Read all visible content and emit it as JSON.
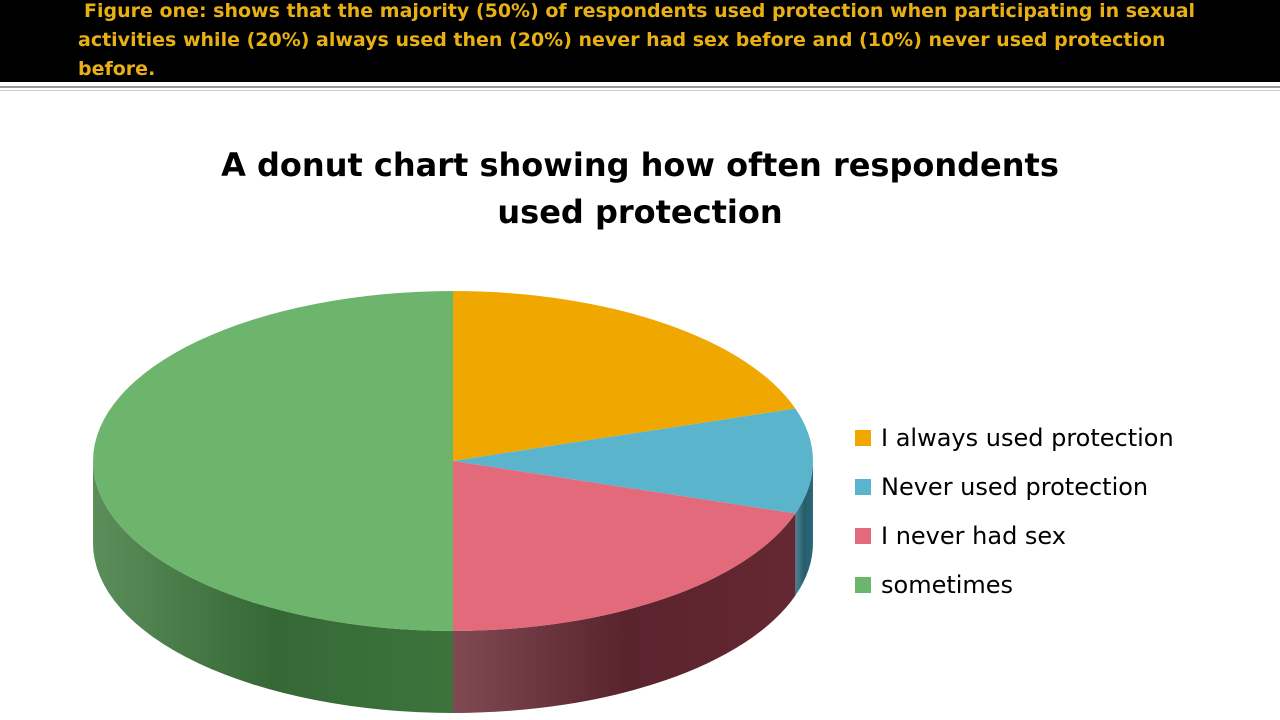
{
  "caption": {
    "text": "Figure one: shows that the majority (50%) of respondents used protection when participating in sexual activities while (20%) always used then (20%) never had sex before and (10%) never used protection before."
  },
  "chart_data": {
    "type": "pie",
    "title": "A donut chart showing how often respondents used protection",
    "categories": [
      "I always used protection",
      "Never used protection",
      "I never had sex",
      "sometimes"
    ],
    "values": [
      20,
      10,
      20,
      50
    ],
    "colors": [
      "#f0a800",
      "#5ab4cc",
      "#e26a7a",
      "#6db56d"
    ],
    "side_colors": [
      "#a06e00",
      "#2e6e80",
      "#6a2a35",
      "#3f7a3f"
    ],
    "style": "3d",
    "legend_position": "right"
  }
}
